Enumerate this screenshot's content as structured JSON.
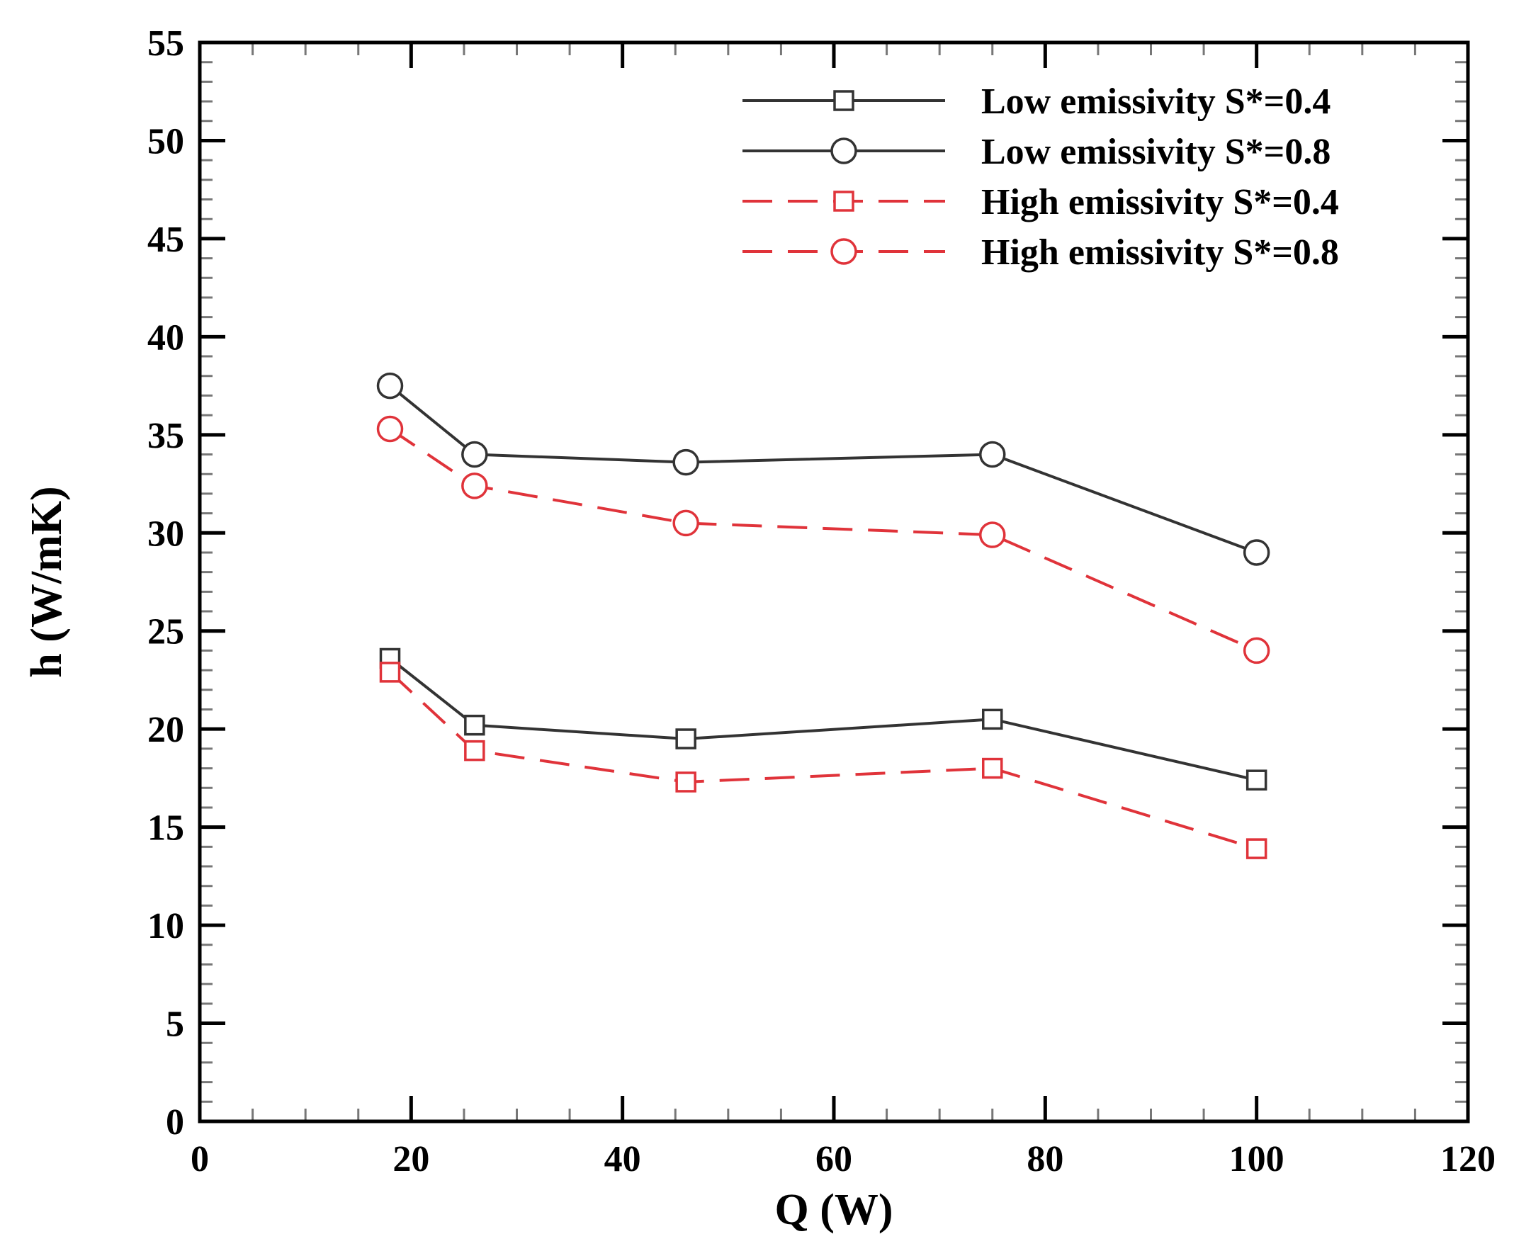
{
  "chart_data": {
    "type": "line",
    "title": "",
    "xlabel": "Q (W)",
    "ylabel": "h (W/mK)",
    "xlim": [
      0,
      120
    ],
    "ylim": [
      0,
      55
    ],
    "x_ticks": [
      0,
      20,
      40,
      60,
      80,
      100,
      120
    ],
    "y_ticks": [
      0,
      5,
      10,
      15,
      20,
      25,
      30,
      35,
      40,
      45,
      50,
      55
    ],
    "x_minor_step": 5,
    "y_minor_step": 1,
    "grid": false,
    "legend_position": "top-right",
    "series": [
      {
        "name": "Low emissivity S*=0.4",
        "color": "#333333",
        "line_style": "solid",
        "marker": "square",
        "x": [
          18,
          26,
          46,
          75,
          100
        ],
        "y": [
          23.6,
          20.2,
          19.5,
          20.5,
          17.4
        ]
      },
      {
        "name": "Low emissivity S*=0.8",
        "color": "#333333",
        "line_style": "solid",
        "marker": "circle",
        "x": [
          18,
          26,
          46,
          75,
          100
        ],
        "y": [
          37.5,
          34.0,
          33.6,
          34.0,
          29.0
        ]
      },
      {
        "name": "High emissivity S*=0.4",
        "color": "#e0333a",
        "line_style": "dashed",
        "marker": "square",
        "x": [
          18,
          26,
          46,
          75,
          100
        ],
        "y": [
          22.9,
          18.9,
          17.3,
          18.0,
          13.9
        ]
      },
      {
        "name": "High emissivity S*=0.8",
        "color": "#e0333a",
        "line_style": "dashed",
        "marker": "circle",
        "x": [
          18,
          26,
          46,
          75,
          100
        ],
        "y": [
          35.3,
          32.4,
          30.5,
          29.9,
          24.0
        ]
      }
    ]
  }
}
